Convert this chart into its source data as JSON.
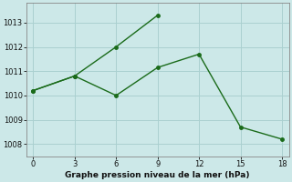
{
  "line1_x": [
    0,
    3,
    6,
    9
  ],
  "line1_y": [
    1010.2,
    1010.8,
    1012.0,
    1013.3
  ],
  "line2_x": [
    0,
    3,
    6,
    9,
    12,
    15,
    18
  ],
  "line2_y": [
    1010.2,
    1010.8,
    1010.0,
    1011.15,
    1011.7,
    1008.7,
    1008.2
  ],
  "line_color": "#1a6b1a",
  "bg_color": "#cce8e8",
  "plot_bg_color": "#cce8e8",
  "xlabel": "Graphe pression niveau de la mer (hPa)",
  "xlim": [
    -0.5,
    18.5
  ],
  "ylim": [
    1007.5,
    1013.8
  ],
  "xticks": [
    0,
    3,
    6,
    9,
    12,
    15,
    18
  ],
  "yticks": [
    1008,
    1009,
    1010,
    1011,
    1012,
    1013
  ],
  "grid_color": "#aad0d0",
  "marker": "o",
  "marker_size": 2.5,
  "linewidth": 1.0
}
